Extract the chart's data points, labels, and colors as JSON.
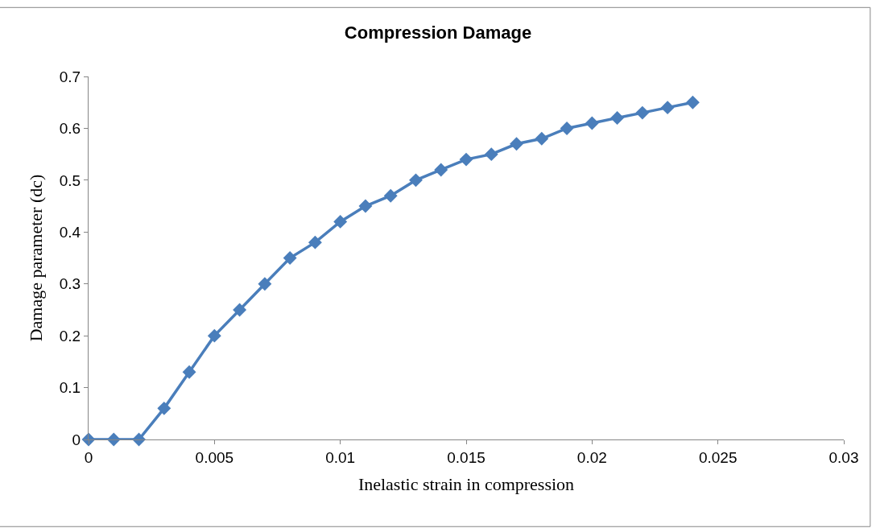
{
  "chart_data": {
    "type": "line",
    "title": "Compression Damage",
    "xlabel": "Inelastic strain in compression",
    "ylabel": "Damage parameter (dc)",
    "x": [
      0,
      0.001,
      0.002,
      0.003,
      0.004,
      0.005,
      0.006,
      0.007,
      0.008,
      0.009,
      0.01,
      0.011,
      0.012,
      0.013,
      0.014,
      0.015,
      0.016,
      0.017,
      0.018,
      0.019,
      0.02,
      0.021,
      0.022,
      0.023,
      0.024
    ],
    "series": [
      {
        "color": "#4a7ebb",
        "values": [
          0,
          0,
          0,
          0.06,
          0.13,
          0.2,
          0.25,
          0.3,
          0.35,
          0.38,
          0.42,
          0.45,
          0.47,
          0.5,
          0.52,
          0.54,
          0.55,
          0.57,
          0.58,
          0.6,
          0.61,
          0.62,
          0.63,
          0.64,
          0.65
        ]
      }
    ],
    "xlim": [
      0,
      0.03
    ],
    "xticks": [
      0,
      0.005,
      0.01,
      0.015,
      0.02,
      0.025,
      0.03
    ],
    "ylim": [
      0,
      0.7
    ],
    "yticks": [
      0,
      0.1,
      0.2,
      0.3,
      0.4,
      0.5,
      0.6,
      0.7
    ],
    "legend": false,
    "marker": "diamond",
    "line_style": "solid"
  }
}
